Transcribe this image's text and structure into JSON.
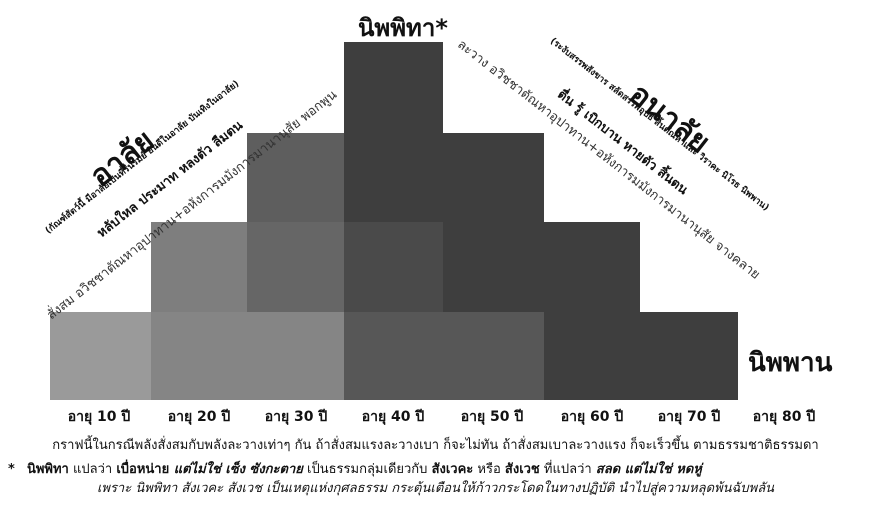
{
  "diagram": {
    "top_title": "นิพพิทา*",
    "right_label": "นิพพาน",
    "ages": [
      "อายุ 10 ปี",
      "อายุ 20 ปี",
      "อายุ 30 ปี",
      "อายุ 40 ปี",
      "อายุ 50 ปี",
      "อายุ 60 ปี",
      "อายุ 70 ปี",
      "อายุ 80 ปี"
    ],
    "left": {
      "title": "อาลัย",
      "sub1": "(กัณฑ์สัตว์นี้ มีอาลัยเป็นที่รื่นรมย์ ยินดีในอาลัย บันเทิงในอาลัย)",
      "sub2": "หลับใหล ประมาท หลงตัว ลืมตน",
      "sub3": "สั่งสม  อวิชชาตัณหาอุปาทาน+อหังการมมังการมานานุสัย พอกพูน"
    },
    "right": {
      "title": "อนาลัย",
      "sub1": "(ระงับสรรพสังขาร สลัดสรรพอุปธิ สิ้นตัณหาและ วิราคะ นิโรธ นิพพาน)",
      "sub2": "ตื่น รู้ เบิกบาน หายตัว สิ้นตน",
      "sub3": "ละวาง  อวิชชาตัณหาอุปาทาน+อหังการมมังการมานานุสัย จางคลาย"
    },
    "colors": {
      "c1": "#9a9a9a",
      "c2": "#7e7e7e",
      "c3": "#5e5e5e",
      "c4": "#3e3e3e",
      "c5": "#4a4a4a"
    }
  },
  "caption": "กราฟนี้ในกรณีพลังสั่งสมกับพลังละวางเท่าๆ กัน ถ้าสั่งสมแรงละวางเบา ก็จะไม่ทัน ถ้าสั่งสมเบาละวางแรง ก็จะเร็วขึ้น ตามธรรมชาติธรรมดา",
  "footnote": {
    "star": "*",
    "line1_a": "นิพพิทา",
    "line1_b": " แปลว่า ",
    "line1_c": "เบื่อหน่าย",
    "line1_d": " แต่ไม่ใช่ เซ็ง ซังกะตาย",
    "line1_e": " เป็นธรรมกลุ่มเดียวกับ ",
    "line1_f": "สังเวคะ",
    "line1_g": " หรือ ",
    "line1_h": "สังเวช",
    "line1_i": " ที่แปลว่า ",
    "line1_j": "สลด แต่ไม่ใช่ หดหู่",
    "line2": "เพราะ นิพพิทา สังเวคะ สังเวช เป็นเหตุแห่งกุศลธรรม กระตุ้นเตือนให้ก้าวกระโดดในทางปฏิบัติ นำไปสู่ความหลุดพ้นฉับพลัน"
  }
}
